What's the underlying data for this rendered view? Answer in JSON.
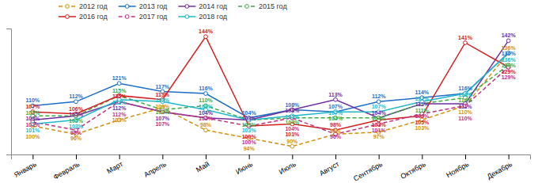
{
  "chart_data": {
    "type": "line",
    "categories": [
      "Январь",
      "Февраль",
      "Март",
      "Апрель",
      "Май",
      "Июнь",
      "Июль",
      "Август",
      "Сентябрь",
      "Октябрь",
      "Ноябрь",
      "Декабрь"
    ],
    "series": [
      {
        "name": "2012 год",
        "color": "#D4900A",
        "line_style": "dashed",
        "marker": "circle",
        "values": [
          100,
          96,
          103,
          109,
          98,
          94,
          90,
          96,
          97,
          103,
          110,
          136
        ],
        "value_labels": [
          "100%",
          "96%",
          "103%",
          "109%",
          "98%",
          "94%",
          "90%",
          "96%",
          "97%",
          "103%",
          "110%",
          "136%"
        ]
      },
      {
        "name": "2013 год",
        "color": "#1E6EC8",
        "line_style": "solid",
        "marker": "circle",
        "values": [
          110,
          112,
          121,
          117,
          116,
          104,
          108,
          107,
          112,
          114,
          116,
          136
        ],
        "value_labels": [
          "110%",
          "112%",
          "121%",
          "117%",
          "116%",
          "104%",
          "108%",
          "107%",
          "112%",
          "114%",
          "116%",
          "136%"
        ]
      },
      {
        "name": "2014 год",
        "color": "#7030A0",
        "line_style": "solid",
        "marker": "circle",
        "values": [
          103,
          105,
          112,
          107,
          104,
          103,
          108,
          113,
          104,
          111,
          111,
          142
        ],
        "value_labels": [
          "103%",
          "105%",
          "112%",
          "107%",
          "104%",
          "103%",
          "108%",
          "113%",
          "104%",
          "111%",
          "111%",
          "142%"
        ]
      },
      {
        "name": "2015 год",
        "color": "#3DAA44",
        "line_style": "dashed",
        "marker": "circle",
        "values": [
          105,
          105,
          115,
          108,
          110,
          103,
          104,
          104,
          104,
          111,
          114,
          130
        ],
        "value_labels": [
          "105%",
          "105%",
          "115%",
          "108%",
          "110%",
          "103%",
          "104%",
          "104%",
          "104%",
          "111%",
          "114%",
          "130%"
        ]
      },
      {
        "name": "2016 год",
        "color": "#D42020",
        "line_style": "solid",
        "marker": "circle",
        "values": [
          107,
          106,
          115,
          113,
          144,
          100,
          101,
          98,
          103,
          105,
          141,
          129
        ],
        "value_labels": [
          "107%",
          "106%",
          "115%",
          "113%",
          "144%",
          "100%",
          "101%",
          "98%",
          "103%",
          "105%",
          "141%",
          "129%"
        ]
      },
      {
        "name": "2017 год",
        "color": "#C03080",
        "line_style": "dashed",
        "marker": "circle",
        "values": [
          102,
          98,
          112,
          107,
          104,
          100,
          104,
          96,
          101,
          106,
          110,
          129
        ],
        "value_labels": [
          "102%",
          "98%",
          "112%",
          "107%",
          "104%",
          "100%",
          "104%",
          "96%",
          "101%",
          "106%",
          "110%",
          "129%"
        ]
      },
      {
        "name": "2018 год",
        "color": "#20B8C8",
        "line_style": "solid",
        "marker": "circle",
        "values": [
          101,
          103,
          113,
          112,
          108,
          103,
          105,
          107,
          107,
          112,
          116,
          136
        ],
        "value_labels": [
          "101%",
          "103%",
          "113%",
          "112%",
          "108%",
          "103%",
          "105%",
          "107%",
          "107%",
          "112%",
          "116%",
          "136%"
        ]
      }
    ],
    "ylim": [
      86,
      148
    ],
    "data_labels": true,
    "legend": "top",
    "tick_labels": "x"
  }
}
